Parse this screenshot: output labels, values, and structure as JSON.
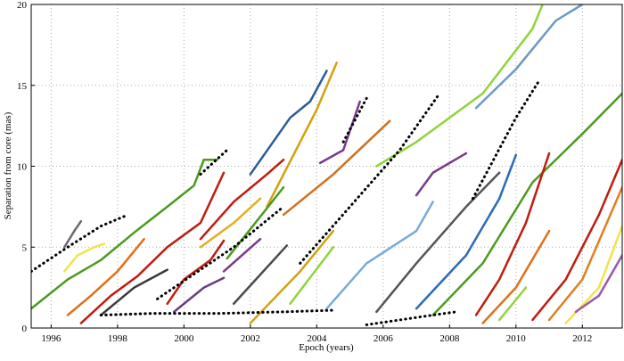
{
  "chart_data": {
    "type": "line",
    "xlabel": "Epoch (years)",
    "ylabel": "Separation from core (mas)",
    "xlim": [
      1995.4,
      2013.2
    ],
    "ylim": [
      0,
      20
    ],
    "xticks": [
      1996,
      1998,
      2000,
      2002,
      2004,
      2006,
      2008,
      2010,
      2012
    ],
    "yticks": [
      0,
      5,
      10,
      15,
      20
    ],
    "grid": true,
    "series": [
      {
        "color": "#4c9a1e",
        "x": [
          1995.4,
          1996.5,
          1997.5,
          1998.5,
          1999.5,
          2000.3,
          2000.6,
          2001.0
        ],
        "values": [
          1.2,
          3.0,
          4.2,
          5.9,
          7.5,
          8.8,
          10.4,
          10.4
        ]
      },
      {
        "color": "#6b6b6b",
        "x": [
          1996.4,
          1996.7,
          1996.9
        ],
        "values": [
          5.0,
          6.0,
          6.6
        ]
      },
      {
        "color": "#f2e34c",
        "x": [
          1996.4,
          1996.8,
          1997.3,
          1997.6
        ],
        "values": [
          3.5,
          4.5,
          5.0,
          5.2
        ]
      },
      {
        "color": "#e0701a",
        "x": [
          1996.5,
          1997.2,
          1998.0,
          1998.8
        ],
        "values": [
          0.8,
          2.0,
          3.5,
          5.5
        ]
      },
      {
        "color": "#c01c10",
        "x": [
          1996.9,
          1997.8,
          1998.6,
          1999.5,
          2000.5,
          2001.2
        ],
        "values": [
          0.3,
          2.0,
          3.2,
          5.0,
          6.5,
          9.6
        ]
      },
      {
        "color": "#3a3a3a",
        "x": [
          1997.5,
          1998.5,
          1999.5
        ],
        "values": [
          0.8,
          2.5,
          3.6
        ]
      },
      {
        "color": "#c01c10",
        "x": [
          1999.5,
          2000.0,
          2000.8,
          2001.2
        ],
        "values": [
          1.5,
          3.0,
          4.2,
          5.4
        ]
      },
      {
        "color": "#6a3a80",
        "x": [
          1999.7,
          2000.6,
          2001.2
        ],
        "values": [
          1.0,
          2.5,
          3.1
        ]
      },
      {
        "color": "#c01c10",
        "x": [
          2000.5,
          2001.5,
          2002.5,
          2003.0
        ],
        "values": [
          5.5,
          7.8,
          9.5,
          10.4
        ]
      },
      {
        "color": "#e0b020",
        "x": [
          2000.5,
          2001.5,
          2002.3
        ],
        "values": [
          5.0,
          6.5,
          8.0
        ]
      },
      {
        "color": "#2c5a9a",
        "x": [
          2002.0,
          2003.2,
          2003.8,
          2004.3
        ],
        "values": [
          9.5,
          13.0,
          14.0,
          15.9
        ]
      },
      {
        "color": "#d4a010",
        "x": [
          2002.5,
          2003.2,
          2004.0,
          2004.6
        ],
        "values": [
          7.5,
          10.3,
          13.5,
          16.4
        ]
      },
      {
        "color": "#7a3a8a",
        "x": [
          2001.2,
          2002.3
        ],
        "values": [
          3.5,
          5.5
        ]
      },
      {
        "color": "#4c9a1e",
        "x": [
          2001.3,
          2003.0
        ],
        "values": [
          4.3,
          8.7
        ]
      },
      {
        "color": "#4a4a4a",
        "x": [
          2001.5,
          2003.1
        ],
        "values": [
          1.5,
          5.1
        ]
      },
      {
        "color": "#d4a010",
        "x": [
          2002.0,
          2003.5,
          2004.5
        ],
        "values": [
          0.3,
          3.5,
          6.0
        ]
      },
      {
        "color": "#d07020",
        "x": [
          2003.0,
          2004.5,
          2006.2
        ],
        "values": [
          7.0,
          9.5,
          12.8
        ]
      },
      {
        "color": "#7a3a8a",
        "x": [
          2004.1,
          2004.8,
          2005.3
        ],
        "values": [
          10.2,
          11.0,
          14.0
        ]
      },
      {
        "color": "#8fd43a",
        "x": [
          2003.2,
          2004.5
        ],
        "values": [
          1.5,
          5.0
        ]
      },
      {
        "color": "#8fd43a",
        "x": [
          2005.8,
          2007.0,
          2009.0,
          2010.5,
          2010.8
        ],
        "values": [
          10.0,
          11.5,
          14.5,
          18.5,
          20.0
        ]
      },
      {
        "color": "#7aaad8",
        "x": [
          2004.3,
          2005.5,
          2007.0,
          2007.5
        ],
        "values": [
          1.2,
          4.0,
          6.0,
          7.8
        ]
      },
      {
        "color": "#7a3a8a",
        "x": [
          2007.0,
          2007.5,
          2008.5
        ],
        "values": [
          8.2,
          9.6,
          10.8
        ]
      },
      {
        "color": "#555555",
        "x": [
          2005.8,
          2007.0,
          2008.5,
          2009.5
        ],
        "values": [
          1.0,
          4.0,
          7.5,
          9.6
        ]
      },
      {
        "color": "#2c6aba",
        "x": [
          2007.0,
          2008.5,
          2009.5,
          2010.0
        ],
        "values": [
          1.2,
          4.5,
          8.0,
          10.7
        ]
      },
      {
        "color": "#6a9ac8",
        "x": [
          2008.8,
          2010.0,
          2011.2,
          2012.0
        ],
        "values": [
          13.6,
          16.0,
          19.0,
          20.0
        ]
      },
      {
        "color": "#4c9a1e",
        "x": [
          2007.5,
          2009.0,
          2010.5,
          2012.0,
          2013.2
        ],
        "values": [
          0.8,
          4.0,
          9.0,
          12.0,
          14.5
        ]
      },
      {
        "color": "#c01c10",
        "x": [
          2008.8,
          2009.5,
          2010.3,
          2011.0
        ],
        "values": [
          0.8,
          3.0,
          6.5,
          10.8
        ]
      },
      {
        "color": "#e0701a",
        "x": [
          2009.0,
          2010.0,
          2011.0
        ],
        "values": [
          0.3,
          2.5,
          6.0
        ]
      },
      {
        "color": "#8fd43a",
        "x": [
          2009.5,
          2010.3
        ],
        "values": [
          0.5,
          2.5
        ]
      },
      {
        "color": "#c01c10",
        "x": [
          2010.5,
          2011.5,
          2012.5,
          2013.2
        ],
        "values": [
          0.5,
          3.0,
          7.0,
          10.4
        ]
      },
      {
        "color": "#e08020",
        "x": [
          2011.0,
          2012.0,
          2013.2
        ],
        "values": [
          0.5,
          3.0,
          8.7
        ]
      },
      {
        "color": "#f2e34c",
        "x": [
          2011.5,
          2012.5,
          2013.2
        ],
        "values": [
          0.3,
          2.5,
          6.3
        ]
      },
      {
        "color": "#9a5aa8",
        "x": [
          2011.8,
          2012.5,
          2013.2
        ],
        "values": [
          1.0,
          2.0,
          4.5
        ]
      },
      {
        "color": "#000000",
        "style": "dotted",
        "x": [
          1995.4,
          1996.5,
          1997.5,
          1998.2
        ],
        "values": [
          3.5,
          5.0,
          6.3,
          6.9
        ]
      },
      {
        "color": "#000000",
        "style": "dotted",
        "x": [
          1997.5,
          1999.0,
          2001.0,
          2003.0,
          2004.5
        ],
        "values": [
          0.8,
          0.9,
          0.9,
          1.0,
          1.1
        ]
      },
      {
        "color": "#000000",
        "style": "dotted",
        "x": [
          2000.5,
          2001.3
        ],
        "values": [
          9.5,
          11.0
        ]
      },
      {
        "color": "#000000",
        "style": "dotted",
        "x": [
          2003.5,
          2005.0,
          2006.5,
          2007.7
        ],
        "values": [
          4.0,
          7.5,
          11.0,
          14.5
        ]
      },
      {
        "color": "#000000",
        "style": "dotted",
        "x": [
          2004.8,
          2005.5
        ],
        "values": [
          11.5,
          14.2
        ]
      },
      {
        "color": "#000000",
        "style": "dotted",
        "x": [
          2008.7,
          2010.0,
          2010.7
        ],
        "values": [
          8.0,
          13.0,
          15.3
        ]
      },
      {
        "color": "#000000",
        "style": "dotted",
        "x": [
          2005.5,
          2006.5,
          2007.5,
          2008.2
        ],
        "values": [
          0.2,
          0.5,
          0.8,
          1.0
        ]
      },
      {
        "color": "#000000",
        "style": "dotted",
        "x": [
          1999.2,
          2001.5,
          2003.0
        ],
        "values": [
          1.8,
          5.0,
          7.5
        ]
      }
    ]
  }
}
